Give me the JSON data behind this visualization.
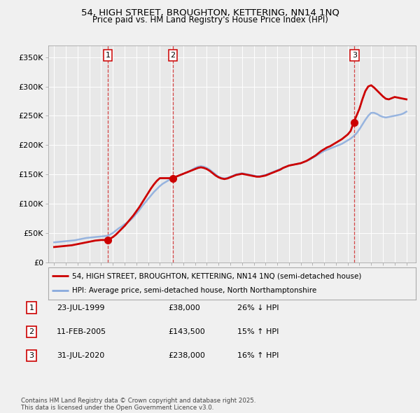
{
  "title": "54, HIGH STREET, BROUGHTON, KETTERING, NN14 1NQ",
  "subtitle": "Price paid vs. HM Land Registry's House Price Index (HPI)",
  "legend_line1": "54, HIGH STREET, BROUGHTON, KETTERING, NN14 1NQ (semi-detached house)",
  "legend_line2": "HPI: Average price, semi-detached house, North Northamptonshire",
  "footer": "Contains HM Land Registry data © Crown copyright and database right 2025.\nThis data is licensed under the Open Government Licence v3.0.",
  "transactions": [
    {
      "num": 1,
      "date": "23-JUL-1999",
      "price": 38000,
      "hpi_rel": "26% ↓ HPI",
      "year": 1999.56
    },
    {
      "num": 2,
      "date": "11-FEB-2005",
      "price": 143500,
      "hpi_rel": "15% ↑ HPI",
      "year": 2005.12
    },
    {
      "num": 3,
      "date": "31-JUL-2020",
      "price": 238000,
      "hpi_rel": "16% ↑ HPI",
      "year": 2020.58
    }
  ],
  "price_line_color": "#cc0000",
  "hpi_line_color": "#88aadd",
  "vline_color": "#cc0000",
  "background_color": "#f0f0f0",
  "plot_bg_color": "#e8e8e8",
  "grid_color": "#ffffff",
  "ylim": [
    0,
    370000
  ],
  "yticks": [
    0,
    50000,
    100000,
    150000,
    200000,
    250000,
    300000,
    350000
  ],
  "ytick_labels": [
    "£0",
    "£50K",
    "£100K",
    "£150K",
    "£200K",
    "£250K",
    "£300K",
    "£350K"
  ],
  "xlim_start": 1994.5,
  "xlim_end": 2025.8,
  "hpi_data_years": [
    1995.0,
    1995.25,
    1995.5,
    1995.75,
    1996.0,
    1996.25,
    1996.5,
    1996.75,
    1997.0,
    1997.25,
    1997.5,
    1997.75,
    1998.0,
    1998.25,
    1998.5,
    1998.75,
    1999.0,
    1999.25,
    1999.5,
    1999.75,
    2000.0,
    2000.25,
    2000.5,
    2000.75,
    2001.0,
    2001.25,
    2001.5,
    2001.75,
    2002.0,
    2002.25,
    2002.5,
    2002.75,
    2003.0,
    2003.25,
    2003.5,
    2003.75,
    2004.0,
    2004.25,
    2004.5,
    2004.75,
    2005.0,
    2005.25,
    2005.5,
    2005.75,
    2006.0,
    2006.25,
    2006.5,
    2006.75,
    2007.0,
    2007.25,
    2007.5,
    2007.75,
    2008.0,
    2008.25,
    2008.5,
    2008.75,
    2009.0,
    2009.25,
    2009.5,
    2009.75,
    2010.0,
    2010.25,
    2010.5,
    2010.75,
    2011.0,
    2011.25,
    2011.5,
    2011.75,
    2012.0,
    2012.25,
    2012.5,
    2012.75,
    2013.0,
    2013.25,
    2013.5,
    2013.75,
    2014.0,
    2014.25,
    2014.5,
    2014.75,
    2015.0,
    2015.25,
    2015.5,
    2015.75,
    2016.0,
    2016.25,
    2016.5,
    2016.75,
    2017.0,
    2017.25,
    2017.5,
    2017.75,
    2018.0,
    2018.25,
    2018.5,
    2018.75,
    2019.0,
    2019.25,
    2019.5,
    2019.75,
    2020.0,
    2020.25,
    2020.5,
    2020.75,
    2021.0,
    2021.25,
    2021.5,
    2021.75,
    2022.0,
    2022.25,
    2022.5,
    2022.75,
    2023.0,
    2023.25,
    2023.5,
    2023.75,
    2024.0,
    2024.25,
    2024.5,
    2024.75,
    2025.0
  ],
  "hpi_data_values": [
    34000,
    34500,
    35000,
    35500,
    36000,
    36500,
    37000,
    37500,
    38500,
    39500,
    40500,
    41500,
    42000,
    42500,
    43000,
    43500,
    44000,
    44500,
    45000,
    47000,
    50000,
    54000,
    58000,
    61000,
    65000,
    68000,
    72000,
    77000,
    83000,
    89000,
    96000,
    102000,
    108000,
    114000,
    120000,
    125000,
    130000,
    134000,
    137000,
    140000,
    143000,
    145000,
    147000,
    149000,
    151000,
    153000,
    155000,
    158000,
    161000,
    163000,
    164000,
    163000,
    161000,
    158000,
    154000,
    150000,
    146000,
    144000,
    143000,
    144000,
    146000,
    148000,
    150000,
    151000,
    152000,
    151000,
    150000,
    149000,
    148000,
    147000,
    147000,
    148000,
    149000,
    151000,
    153000,
    155000,
    157000,
    159000,
    161000,
    163000,
    165000,
    166000,
    167000,
    168000,
    169000,
    171000,
    173000,
    175000,
    178000,
    181000,
    184000,
    187000,
    190000,
    192000,
    194000,
    196000,
    198000,
    200000,
    202000,
    205000,
    208000,
    211000,
    215000,
    220000,
    227000,
    235000,
    243000,
    250000,
    255000,
    255000,
    253000,
    250000,
    248000,
    247000,
    248000,
    249000,
    250000,
    251000,
    252000,
    254000,
    257000
  ],
  "price_data_years": [
    1995.0,
    1995.25,
    1995.5,
    1995.75,
    1996.0,
    1996.25,
    1996.5,
    1996.75,
    1997.0,
    1997.25,
    1997.5,
    1997.75,
    1998.0,
    1998.25,
    1998.5,
    1998.75,
    1999.0,
    1999.25,
    1999.5,
    1999.75,
    2000.0,
    2000.25,
    2000.5,
    2000.75,
    2001.0,
    2001.25,
    2001.5,
    2001.75,
    2002.0,
    2002.25,
    2002.5,
    2002.75,
    2003.0,
    2003.25,
    2003.5,
    2003.75,
    2004.0,
    2004.25,
    2004.5,
    2004.75,
    2005.0,
    2005.25,
    2005.5,
    2005.75,
    2006.0,
    2006.25,
    2006.5,
    2006.75,
    2007.0,
    2007.25,
    2007.5,
    2007.75,
    2008.0,
    2008.25,
    2008.5,
    2008.75,
    2009.0,
    2009.25,
    2009.5,
    2009.75,
    2010.0,
    2010.25,
    2010.5,
    2010.75,
    2011.0,
    2011.25,
    2011.5,
    2011.75,
    2012.0,
    2012.25,
    2012.5,
    2012.75,
    2013.0,
    2013.25,
    2013.5,
    2013.75,
    2014.0,
    2014.25,
    2014.5,
    2014.75,
    2015.0,
    2015.25,
    2015.5,
    2015.75,
    2016.0,
    2016.25,
    2016.5,
    2016.75,
    2017.0,
    2017.25,
    2017.5,
    2017.75,
    2018.0,
    2018.25,
    2018.5,
    2018.75,
    2019.0,
    2019.25,
    2019.5,
    2019.75,
    2020.0,
    2020.25,
    2020.5,
    2020.75,
    2021.0,
    2021.25,
    2021.5,
    2021.75,
    2022.0,
    2022.25,
    2022.5,
    2022.75,
    2023.0,
    2023.25,
    2023.5,
    2023.75,
    2024.0,
    2024.25,
    2024.5,
    2024.75,
    2025.0
  ],
  "price_data_values": [
    26000,
    26500,
    27000,
    27500,
    28000,
    28500,
    29000,
    30000,
    31000,
    32000,
    33000,
    34000,
    35000,
    36000,
    37000,
    37500,
    38000,
    38000,
    38000,
    40000,
    43000,
    47000,
    52000,
    57000,
    62000,
    68000,
    74000,
    80000,
    87000,
    94000,
    102000,
    110000,
    118000,
    126000,
    133000,
    139000,
    143500,
    143500,
    143500,
    143500,
    143500,
    145000,
    147000,
    149000,
    151000,
    153000,
    155000,
    157000,
    159000,
    161000,
    162000,
    161000,
    159000,
    156000,
    152000,
    148000,
    145000,
    143000,
    142000,
    143000,
    145000,
    147000,
    149000,
    150000,
    151000,
    150000,
    149000,
    148000,
    147000,
    146000,
    146000,
    147000,
    148000,
    150000,
    152000,
    154000,
    156000,
    158000,
    161000,
    163000,
    165000,
    166000,
    167000,
    168000,
    169000,
    171000,
    173000,
    176000,
    179000,
    182000,
    186000,
    190000,
    193000,
    196000,
    198000,
    201000,
    204000,
    207000,
    210000,
    214000,
    218000,
    224000,
    238000,
    250000,
    262000,
    278000,
    292000,
    300000,
    302000,
    298000,
    293000,
    288000,
    283000,
    279000,
    278000,
    280000,
    282000,
    281000,
    280000,
    279000,
    278000
  ]
}
